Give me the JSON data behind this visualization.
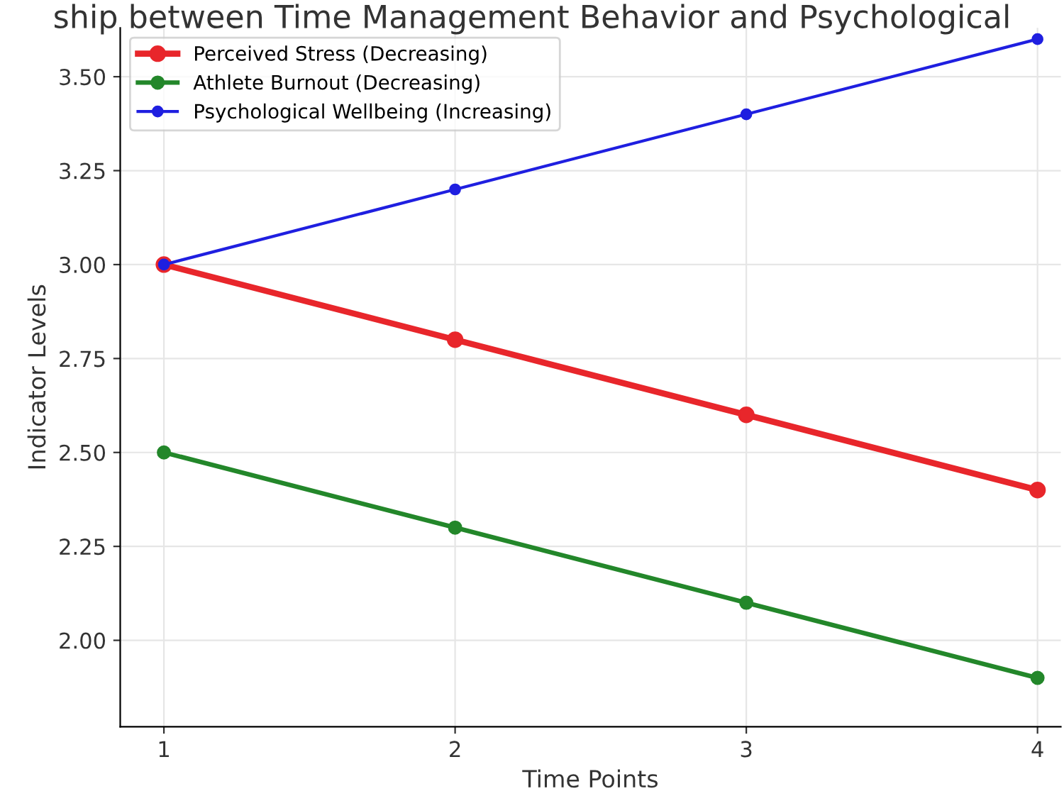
{
  "chart_data": {
    "type": "line",
    "title": "ship between Time Management Behavior and Psychological",
    "xlabel": "Time Points",
    "ylabel": "Indicator Levels",
    "x": [
      1,
      2,
      3,
      4
    ],
    "series": [
      {
        "name": "Perceived Stress (Decreasing)",
        "color": "#e8262b",
        "values": [
          3.0,
          2.8,
          2.6,
          2.4
        ]
      },
      {
        "name": "Athlete Burnout (Decreasing)",
        "color": "#23872a",
        "values": [
          2.5,
          2.3,
          2.1,
          1.9
        ]
      },
      {
        "name": "Psychological Wellbeing (Increasing)",
        "color": "#1f1fe0",
        "values": [
          3.0,
          3.2,
          3.4,
          3.6
        ]
      }
    ],
    "xlim": [
      0.85,
      4.08
    ],
    "ylim": [
      1.77,
      3.63
    ],
    "xticks": [
      1,
      2,
      3,
      4
    ],
    "yticks": [
      {
        "value": 2.0,
        "label": "2.00"
      },
      {
        "value": 2.25,
        "label": "2.25"
      },
      {
        "value": 2.5,
        "label": "2.50"
      },
      {
        "value": 2.75,
        "label": "2.75"
      },
      {
        "value": 3.0,
        "label": "3.00"
      },
      {
        "value": 3.25,
        "label": "3.25"
      },
      {
        "value": 3.5,
        "label": "3.50"
      }
    ],
    "grid": true,
    "legend": "top left",
    "marker": "circle",
    "line_style": "solid"
  }
}
